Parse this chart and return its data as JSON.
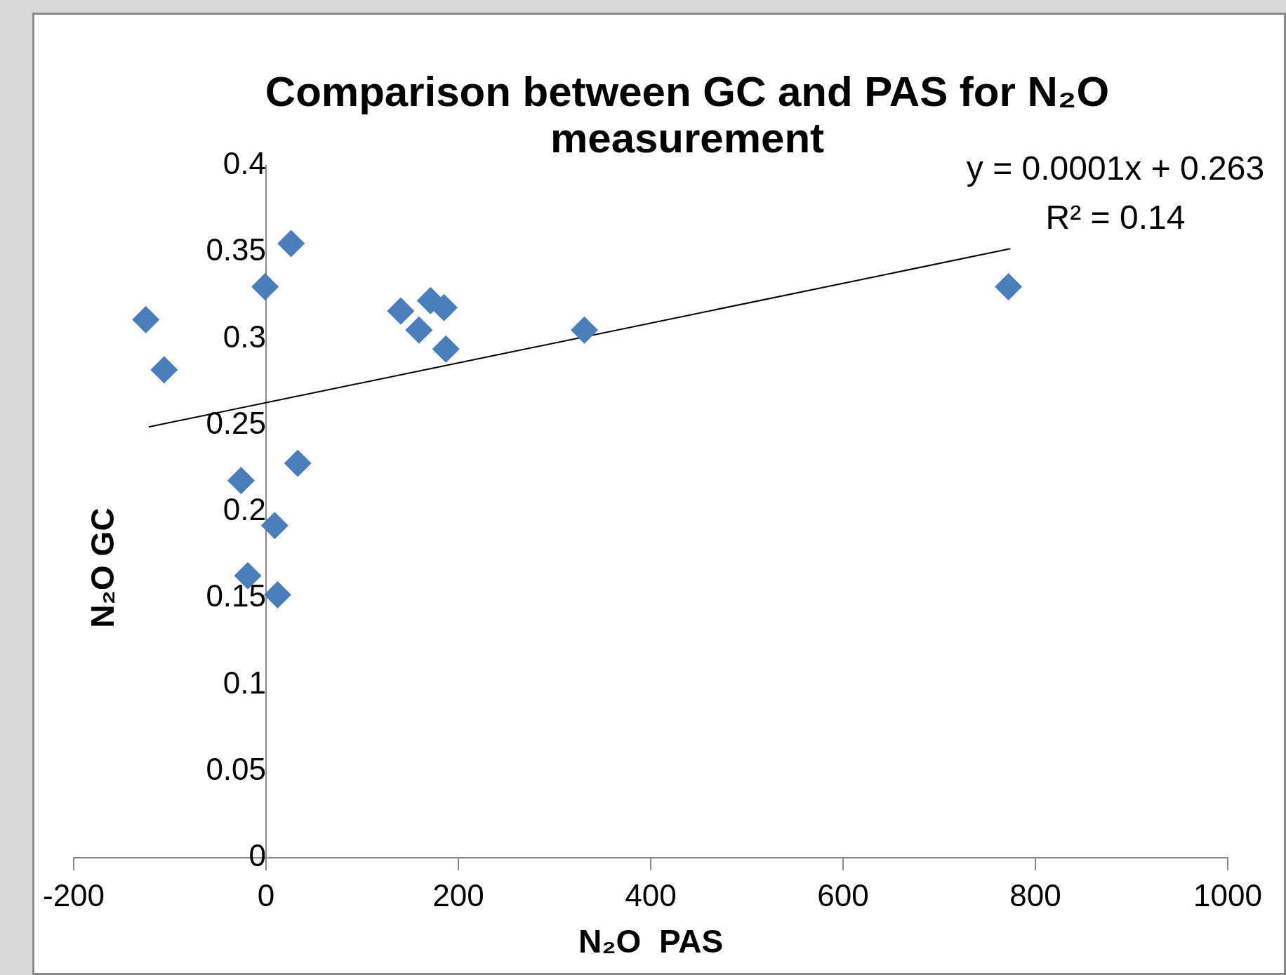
{
  "chart_data": {
    "type": "scatter",
    "title": "Comparison between GC and PAS for N₂O measurement",
    "xlabel": "N₂O  PAS",
    "ylabel": "N₂O GC",
    "annotations": [
      "y = 0.0001x + 0.263",
      "R² = 0.14"
    ],
    "xlim": [
      -200,
      1000
    ],
    "xticks": [
      -200,
      0,
      200,
      400,
      600,
      800,
      1000
    ],
    "ylim": [
      0,
      0.4
    ],
    "yticks": [
      0,
      0.05,
      0.1,
      0.15,
      0.2,
      0.25,
      0.3,
      0.35,
      0.4
    ],
    "grid": false,
    "legend": false,
    "marker": "diamond",
    "series": [
      {
        "color": "#4a7ebb",
        "x": [
          -125,
          -106,
          -1,
          26,
          -26,
          33,
          9,
          -19,
          12,
          140,
          159,
          171,
          185,
          187,
          331,
          772
        ],
        "values": [
          0.311,
          0.282,
          0.33,
          0.355,
          0.218,
          0.228,
          0.192,
          0.163,
          0.152,
          0.316,
          0.305,
          0.322,
          0.318,
          0.294,
          0.305,
          0.33
        ]
      },
      {
        "type": "line",
        "color": "#000000",
        "marker": "none",
        "x": [
          -122,
          774
        ],
        "values": [
          0.249,
          0.352
        ]
      }
    ]
  }
}
